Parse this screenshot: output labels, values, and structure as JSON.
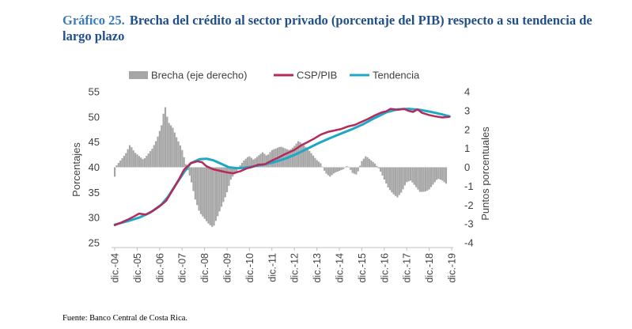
{
  "title": {
    "number": "Gráfico 25.",
    "text": "Brecha del crédito al sector privado (porcentaje del PIB) respecto a su tendencia de largo plazo"
  },
  "source": "Fuente: Banco Central de Costa Rica.",
  "chart_data": {
    "type": "bar-line-combo",
    "legend": [
      "Brecha (eje derecho)",
      "CSP/PIB",
      "Tendencia"
    ],
    "colors": {
      "brecha": "#a6a6a6",
      "csp": "#b52a5a",
      "tendencia": "#1ea8c6"
    },
    "ylabel_left": "Porcentajes",
    "ylabel_right": "Puntos porcentuales",
    "ylim_left": [
      25,
      55
    ],
    "ylim_right": [
      -4,
      4
    ],
    "yticks_left": [
      "55",
      "50",
      "45",
      "40",
      "35",
      "30",
      "25"
    ],
    "yticks_right": [
      "4",
      "3",
      "2",
      "1",
      "0",
      "-1",
      "-2",
      "-3",
      "-4"
    ],
    "x_start": 2004.917,
    "x_end": 2019.917,
    "x_ticks": [
      "dic.-04",
      "dic.-05",
      "dic.-06",
      "dic.-07",
      "dic.-08",
      "dic.-09",
      "dic.-10",
      "dic.-11",
      "dic.-12",
      "dic.-13",
      "dic.-14",
      "dic.-15",
      "dic.-16",
      "dic.-17",
      "dic.-18",
      "dic.-19"
    ],
    "csp_pib": [
      [
        2004.92,
        28.5
      ],
      [
        2005.2,
        29.0
      ],
      [
        2005.5,
        29.6
      ],
      [
        2005.8,
        30.3
      ],
      [
        2006.0,
        30.8
      ],
      [
        2006.3,
        30.6
      ],
      [
        2006.6,
        31.3
      ],
      [
        2006.9,
        32.2
      ],
      [
        2007.2,
        33.3
      ],
      [
        2007.5,
        35.5
      ],
      [
        2007.8,
        37.8
      ],
      [
        2008.0,
        39.5
      ],
      [
        2008.3,
        40.8
      ],
      [
        2008.6,
        41.2
      ],
      [
        2008.8,
        41.0
      ],
      [
        2009.0,
        40.2
      ],
      [
        2009.3,
        39.6
      ],
      [
        2009.6,
        39.3
      ],
      [
        2009.9,
        39.0
      ],
      [
        2010.2,
        38.8
      ],
      [
        2010.5,
        39.2
      ],
      [
        2010.8,
        39.8
      ],
      [
        2011.0,
        40.0
      ],
      [
        2011.3,
        40.5
      ],
      [
        2011.6,
        40.6
      ],
      [
        2011.9,
        41.3
      ],
      [
        2012.2,
        41.9
      ],
      [
        2012.5,
        42.6
      ],
      [
        2012.9,
        43.4
      ],
      [
        2013.2,
        44.3
      ],
      [
        2013.5,
        45.0
      ],
      [
        2013.8,
        45.7
      ],
      [
        2014.1,
        46.5
      ],
      [
        2014.4,
        47.0
      ],
      [
        2014.7,
        47.3
      ],
      [
        2015.0,
        47.6
      ],
      [
        2015.3,
        48.1
      ],
      [
        2015.6,
        48.4
      ],
      [
        2015.9,
        49.0
      ],
      [
        2016.2,
        49.6
      ],
      [
        2016.5,
        50.3
      ],
      [
        2016.8,
        50.9
      ],
      [
        2017.0,
        51.1
      ],
      [
        2017.2,
        51.6
      ],
      [
        2017.5,
        51.4
      ],
      [
        2017.8,
        51.6
      ],
      [
        2018.0,
        51.2
      ],
      [
        2018.2,
        51.0
      ],
      [
        2018.4,
        51.5
      ],
      [
        2018.6,
        50.8
      ],
      [
        2018.9,
        50.4
      ],
      [
        2019.2,
        50.1
      ],
      [
        2019.5,
        49.9
      ],
      [
        2019.8,
        50.0
      ]
    ],
    "tendencia": [
      [
        2004.92,
        28.6
      ],
      [
        2005.5,
        29.3
      ],
      [
        2006.0,
        30.0
      ],
      [
        2006.5,
        31.0
      ],
      [
        2007.0,
        32.6
      ],
      [
        2007.3,
        34.2
      ],
      [
        2007.6,
        36.3
      ],
      [
        2008.0,
        39.0
      ],
      [
        2008.3,
        40.8
      ],
      [
        2008.7,
        41.6
      ],
      [
        2009.0,
        41.7
      ],
      [
        2009.3,
        41.4
      ],
      [
        2009.6,
        40.8
      ],
      [
        2010.0,
        40.0
      ],
      [
        2010.4,
        39.8
      ],
      [
        2010.7,
        39.9
      ],
      [
        2011.0,
        40.1
      ],
      [
        2011.5,
        40.5
      ],
      [
        2012.0,
        41.0
      ],
      [
        2012.5,
        41.7
      ],
      [
        2013.0,
        42.6
      ],
      [
        2013.5,
        43.7
      ],
      [
        2014.0,
        44.8
      ],
      [
        2014.5,
        45.8
      ],
      [
        2015.0,
        46.7
      ],
      [
        2015.5,
        47.6
      ],
      [
        2016.0,
        48.6
      ],
      [
        2016.5,
        49.8
      ],
      [
        2017.0,
        50.9
      ],
      [
        2017.5,
        51.5
      ],
      [
        2018.0,
        51.6
      ],
      [
        2018.5,
        51.4
      ],
      [
        2019.0,
        51.0
      ],
      [
        2019.5,
        50.5
      ],
      [
        2019.83,
        50.1
      ]
    ],
    "brecha": [
      [
        2004.92,
        -0.5
      ],
      [
        2005.0,
        0.1
      ],
      [
        2005.2,
        0.4
      ],
      [
        2005.4,
        0.7
      ],
      [
        2005.6,
        1.2
      ],
      [
        2005.8,
        0.8
      ],
      [
        2006.0,
        0.6
      ],
      [
        2006.2,
        0.4
      ],
      [
        2006.4,
        0.7
      ],
      [
        2006.6,
        1.0
      ],
      [
        2006.8,
        1.5
      ],
      [
        2007.0,
        2.2
      ],
      [
        2007.15,
        3.3
      ],
      [
        2007.3,
        2.4
      ],
      [
        2007.5,
        2.1
      ],
      [
        2007.7,
        1.5
      ],
      [
        2007.9,
        1.0
      ],
      [
        2008.1,
        0.1
      ],
      [
        2008.3,
        -0.6
      ],
      [
        2008.5,
        -1.7
      ],
      [
        2008.7,
        -2.4
      ],
      [
        2008.9,
        -2.7
      ],
      [
        2009.1,
        -3.0
      ],
      [
        2009.3,
        -3.2
      ],
      [
        2009.5,
        -2.6
      ],
      [
        2009.7,
        -2.0
      ],
      [
        2009.9,
        -1.4
      ],
      [
        2010.1,
        -0.6
      ],
      [
        2010.3,
        -0.3
      ],
      [
        2010.5,
        0.1
      ],
      [
        2010.7,
        0.4
      ],
      [
        2010.9,
        0.6
      ],
      [
        2011.1,
        0.4
      ],
      [
        2011.3,
        0.6
      ],
      [
        2011.5,
        0.8
      ],
      [
        2011.7,
        0.6
      ],
      [
        2011.9,
        0.9
      ],
      [
        2012.1,
        1.0
      ],
      [
        2012.3,
        1.1
      ],
      [
        2012.5,
        1.0
      ],
      [
        2012.7,
        0.9
      ],
      [
        2012.9,
        1.1
      ],
      [
        2013.1,
        1.4
      ],
      [
        2013.3,
        1.2
      ],
      [
        2013.5,
        1.0
      ],
      [
        2013.7,
        0.7
      ],
      [
        2013.9,
        0.4
      ],
      [
        2014.1,
        0.2
      ],
      [
        2014.3,
        -0.3
      ],
      [
        2014.5,
        -0.5
      ],
      [
        2014.7,
        -0.3
      ],
      [
        2014.9,
        -0.2
      ],
      [
        2015.1,
        -0.1
      ],
      [
        2015.3,
        0.1
      ],
      [
        2015.5,
        -0.3
      ],
      [
        2015.7,
        -0.4
      ],
      [
        2015.9,
        0.3
      ],
      [
        2016.1,
        0.6
      ],
      [
        2016.3,
        0.4
      ],
      [
        2016.5,
        0.2
      ],
      [
        2016.7,
        -0.1
      ],
      [
        2016.9,
        -0.6
      ],
      [
        2017.1,
        -1.1
      ],
      [
        2017.3,
        -1.4
      ],
      [
        2017.5,
        -1.6
      ],
      [
        2017.7,
        -1.3
      ],
      [
        2017.9,
        -0.8
      ],
      [
        2018.1,
        -0.7
      ],
      [
        2018.3,
        -1.0
      ],
      [
        2018.5,
        -1.3
      ],
      [
        2018.7,
        -1.3
      ],
      [
        2018.9,
        -1.2
      ],
      [
        2019.1,
        -0.9
      ],
      [
        2019.3,
        -0.6
      ],
      [
        2019.5,
        -0.7
      ],
      [
        2019.7,
        -0.9
      ]
    ]
  }
}
